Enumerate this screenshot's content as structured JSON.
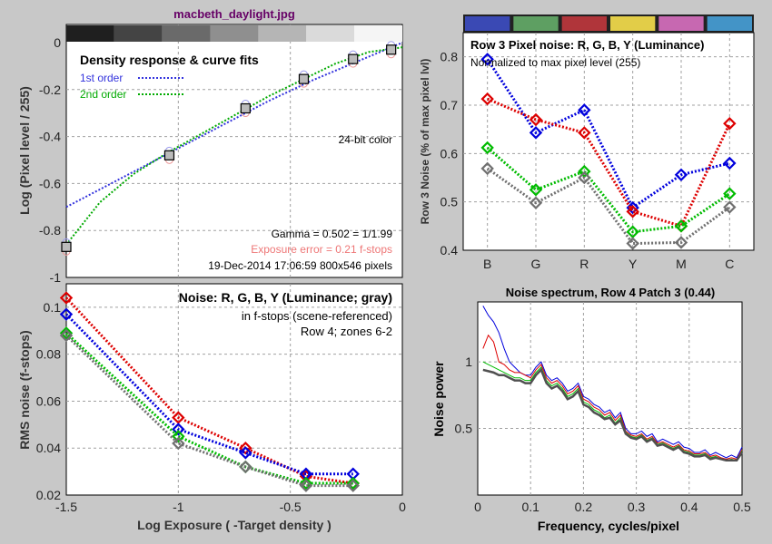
{
  "page_title": "macbeth_daylight.jpg",
  "colors": {
    "background": "#c8c8c8",
    "red": "#dd0000",
    "green": "#00bb00",
    "blue": "#0000dd",
    "gray": "#707070",
    "grid": "#999999",
    "title": "#660066"
  },
  "chart_data": [
    {
      "id": "density",
      "type": "scatter",
      "title": "Density response & curve fits",
      "xlabel": "",
      "ylabel": "Log (Pixel level / 255)",
      "xlim": [
        -1.5,
        0
      ],
      "ylim": [
        -1,
        0
      ],
      "xticks": [
        -1.5,
        -1,
        -0.5,
        0
      ],
      "yticks": [
        0,
        -0.2,
        -0.4,
        -0.6,
        -0.8,
        -1
      ],
      "ytick_labels": [
        "0",
        "-0.2",
        "-0.4",
        "-0.6",
        "-0.8",
        "-1"
      ],
      "grid": true,
      "legend": [
        {
          "label": "1st order",
          "color": "#3333dd"
        },
        {
          "label": "2nd order",
          "color": "#00aa00"
        }
      ],
      "annotations": {
        "bit_depth": "24-bit color",
        "gamma": "Gamma = 0.502 = 1/1.99",
        "exposure_error": "Exposure error = 0.21 f-stops",
        "timestamp": "19-Dec-2014 17:06:59   800x546 pixels"
      },
      "squares": {
        "x": [
          -1.5,
          -1.04,
          -0.7,
          -0.44,
          -0.22,
          -0.05
        ],
        "y": [
          -0.87,
          -0.48,
          -0.28,
          -0.155,
          -0.07,
          -0.03
        ]
      },
      "fit1": {
        "x": [
          -1.5,
          -1.2,
          -1.0,
          -0.8,
          -0.6,
          -0.4,
          -0.2,
          0
        ],
        "y": [
          -0.7,
          -0.55,
          -0.45,
          -0.35,
          -0.25,
          -0.16,
          -0.08,
          0
        ]
      },
      "fit2": {
        "x": [
          -1.5,
          -1.35,
          -1.2,
          -1.05,
          -0.9,
          -0.75,
          -0.6,
          -0.45,
          -0.3,
          -0.15,
          0
        ],
        "y": [
          -0.86,
          -0.68,
          -0.56,
          -0.47,
          -0.39,
          -0.31,
          -0.23,
          -0.16,
          -0.09,
          -0.04,
          -0.02
        ]
      }
    },
    {
      "id": "noise_fstops",
      "type": "line",
      "title": "Noise: R, G, B, Y (Luminance; gray)",
      "subtitle1": "in f-stops (scene-referenced)",
      "subtitle2": "Row 4; zones 6-2",
      "xlabel": "Log Exposure ( -Target density )",
      "ylabel": "RMS noise (f-stops)",
      "xlim": [
        -1.5,
        0
      ],
      "ylim": [
        0.02,
        0.11
      ],
      "xticks": [
        -1.5,
        -1,
        -0.5,
        0
      ],
      "yticks": [
        0.02,
        0.04,
        0.06,
        0.08,
        0.1
      ],
      "ytick_labels": [
        "0.02",
        "0.04",
        "0.06",
        "0.08",
        "0.1"
      ],
      "grid": true,
      "x": [
        -1.5,
        -1.0,
        -0.7,
        -0.43,
        -0.22
      ],
      "series": [
        {
          "color": "#dd0000",
          "values": [
            0.104,
            0.053,
            0.04,
            0.028,
            0.025
          ]
        },
        {
          "color": "#0000dd",
          "values": [
            0.097,
            0.048,
            0.038,
            0.029,
            0.029
          ]
        },
        {
          "color": "#00bb00",
          "values": [
            0.089,
            0.045,
            0.032,
            0.025,
            0.025
          ]
        },
        {
          "color": "#707070",
          "values": [
            0.088,
            0.042,
            0.032,
            0.024,
            0.024
          ]
        }
      ]
    },
    {
      "id": "row3_noise",
      "type": "line",
      "title": "Row 3 Pixel noise: R, G, B, Y (Luminance)",
      "subtitle": "Normalized to max pixel level (255)",
      "xlabel": "",
      "ylabel": "Row 3 Noise (% of max pixel lvl)",
      "categories": [
        "B",
        "G",
        "R",
        "Y",
        "M",
        "C"
      ],
      "patch_colors": [
        "#3a49b4",
        "#5e9f62",
        "#b0353a",
        "#e2cd48",
        "#c768b1",
        "#4394c7"
      ],
      "ylim": [
        0.4,
        0.85
      ],
      "yticks": [
        0.4,
        0.5,
        0.6,
        0.7,
        0.8
      ],
      "ytick_labels": [
        "0.4",
        "0.5",
        "0.6",
        "0.7",
        "0.8"
      ],
      "grid": true,
      "series": [
        {
          "color": "#0000dd",
          "values": [
            0.795,
            0.643,
            0.69,
            0.488,
            0.556,
            0.58
          ]
        },
        {
          "color": "#dd0000",
          "values": [
            0.713,
            0.67,
            0.643,
            0.48,
            0.45,
            0.662
          ]
        },
        {
          "color": "#00bb00",
          "values": [
            0.612,
            0.525,
            0.563,
            0.438,
            0.45,
            0.517
          ]
        },
        {
          "color": "#707070",
          "values": [
            0.569,
            0.498,
            0.55,
            0.414,
            0.416,
            0.489
          ]
        }
      ]
    },
    {
      "id": "spectrum",
      "type": "line",
      "title": "Noise spectrum, Row 4 Patch 3 (0.44)",
      "xlabel": "Frequency, cycles/pixel",
      "ylabel": "Noise power",
      "xlim": [
        0,
        0.5
      ],
      "ylim": [
        0,
        1.45
      ],
      "xticks": [
        0,
        0.1,
        0.2,
        0.3,
        0.4,
        0.5
      ],
      "xtick_labels": [
        "0",
        "0.1",
        "0.2",
        "0.3",
        "0.4",
        "0.5"
      ],
      "yticks": [
        0.5,
        1
      ],
      "ytick_labels": [
        "0.5",
        "1"
      ],
      "grid": true,
      "x": [
        0.01,
        0.02,
        0.03,
        0.04,
        0.05,
        0.06,
        0.07,
        0.08,
        0.09,
        0.1,
        0.11,
        0.12,
        0.13,
        0.14,
        0.15,
        0.16,
        0.17,
        0.18,
        0.19,
        0.2,
        0.21,
        0.22,
        0.23,
        0.24,
        0.25,
        0.26,
        0.27,
        0.28,
        0.29,
        0.3,
        0.31,
        0.32,
        0.33,
        0.34,
        0.35,
        0.36,
        0.37,
        0.38,
        0.39,
        0.4,
        0.41,
        0.42,
        0.43,
        0.44,
        0.45,
        0.46,
        0.47,
        0.48,
        0.49,
        0.5
      ],
      "series": [
        {
          "color": "#0000dd",
          "values": [
            1.42,
            1.35,
            1.3,
            1.22,
            1.1,
            1.0,
            0.96,
            0.92,
            0.9,
            0.9,
            0.96,
            1.0,
            0.9,
            0.86,
            0.88,
            0.84,
            0.78,
            0.8,
            0.84,
            0.74,
            0.72,
            0.68,
            0.66,
            0.62,
            0.64,
            0.58,
            0.62,
            0.5,
            0.46,
            0.46,
            0.48,
            0.44,
            0.46,
            0.4,
            0.42,
            0.4,
            0.38,
            0.4,
            0.36,
            0.35,
            0.32,
            0.32,
            0.34,
            0.3,
            0.32,
            0.3,
            0.28,
            0.3,
            0.28,
            0.36
          ]
        },
        {
          "color": "#dd0000",
          "values": [
            1.1,
            1.2,
            1.15,
            1.0,
            0.98,
            0.94,
            0.92,
            0.92,
            0.9,
            0.88,
            0.94,
            0.98,
            0.88,
            0.84,
            0.86,
            0.82,
            0.76,
            0.78,
            0.82,
            0.72,
            0.7,
            0.66,
            0.64,
            0.6,
            0.62,
            0.56,
            0.6,
            0.48,
            0.45,
            0.44,
            0.46,
            0.42,
            0.44,
            0.39,
            0.4,
            0.38,
            0.36,
            0.38,
            0.34,
            0.33,
            0.31,
            0.31,
            0.32,
            0.29,
            0.3,
            0.28,
            0.27,
            0.28,
            0.27,
            0.34
          ]
        },
        {
          "color": "#00bb00",
          "values": [
            1.0,
            0.98,
            0.96,
            0.94,
            0.92,
            0.9,
            0.88,
            0.88,
            0.86,
            0.86,
            0.92,
            0.96,
            0.86,
            0.82,
            0.84,
            0.8,
            0.74,
            0.76,
            0.8,
            0.7,
            0.68,
            0.64,
            0.62,
            0.58,
            0.6,
            0.54,
            0.58,
            0.47,
            0.44,
            0.43,
            0.45,
            0.41,
            0.43,
            0.38,
            0.39,
            0.37,
            0.35,
            0.37,
            0.33,
            0.32,
            0.3,
            0.3,
            0.31,
            0.28,
            0.29,
            0.27,
            0.26,
            0.27,
            0.26,
            0.33
          ]
        },
        {
          "color": "#505050",
          "values": [
            0.94,
            0.93,
            0.92,
            0.9,
            0.9,
            0.88,
            0.86,
            0.86,
            0.84,
            0.84,
            0.9,
            0.94,
            0.84,
            0.8,
            0.82,
            0.78,
            0.72,
            0.74,
            0.78,
            0.68,
            0.66,
            0.62,
            0.6,
            0.57,
            0.58,
            0.53,
            0.56,
            0.46,
            0.43,
            0.42,
            0.44,
            0.4,
            0.42,
            0.37,
            0.38,
            0.36,
            0.34,
            0.36,
            0.32,
            0.31,
            0.29,
            0.29,
            0.3,
            0.27,
            0.28,
            0.27,
            0.26,
            0.26,
            0.26,
            0.32
          ]
        }
      ]
    }
  ]
}
